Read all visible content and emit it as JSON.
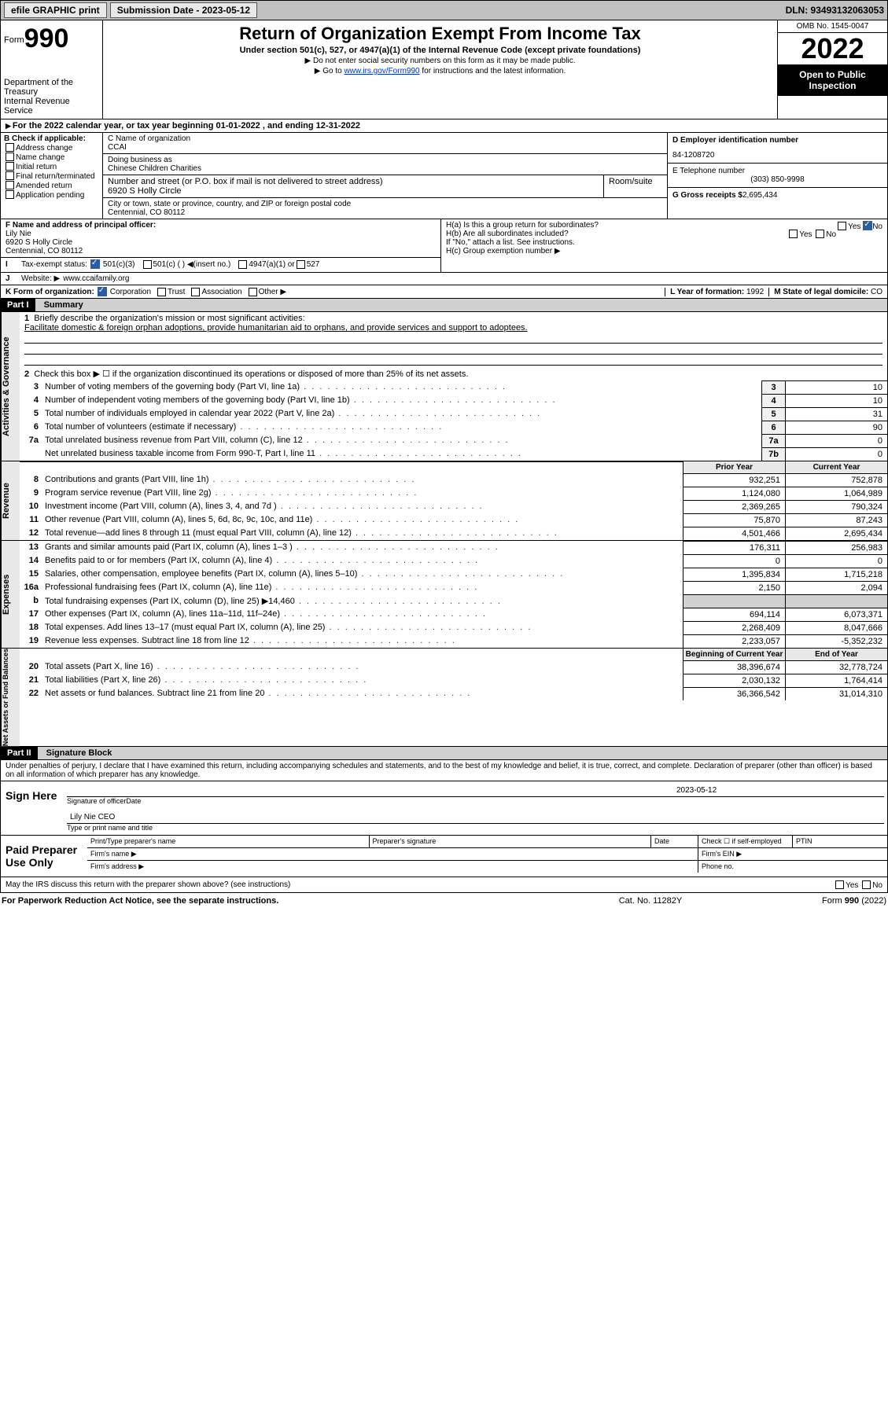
{
  "topbar": {
    "efile": "efile GRAPHIC print",
    "sub_label": "Submission Date - 2023-05-12",
    "dln": "DLN: 93493132063053"
  },
  "header": {
    "form_word": "Form",
    "form_no": "990",
    "dept": "Department of the Treasury",
    "irs": "Internal Revenue Service",
    "title": "Return of Organization Exempt From Income Tax",
    "sub1": "Under section 501(c), 527, or 4947(a)(1) of the Internal Revenue Code (except private foundations)",
    "sub2": "▶ Do not enter social security numbers on this form as it may be made public.",
    "sub3_pre": "▶ Go to ",
    "sub3_link": "www.irs.gov/Form990",
    "sub3_post": " for instructions and the latest information.",
    "omb": "OMB No. 1545-0047",
    "year": "2022",
    "inspect": "Open to Public Inspection"
  },
  "period": {
    "text": "For the 2022 calendar year, or tax year beginning 01-01-2022    , and ending 12-31-2022"
  },
  "boxB": {
    "hdr": "B Check if applicable:",
    "opts": [
      "Address change",
      "Name change",
      "Initial return",
      "Final return/terminated",
      "Amended return",
      "Application pending"
    ]
  },
  "boxC": {
    "name_lbl": "C Name of organization",
    "name": "CCAI",
    "dba_lbl": "Doing business as",
    "dba": "Chinese Children Charities",
    "addr_lbl": "Number and street (or P.O. box if mail is not delivered to street address)",
    "room_lbl": "Room/suite",
    "addr": "6920 S Holly Circle",
    "city_lbl": "City or town, state or province, country, and ZIP or foreign postal code",
    "city": "Centennial, CO  80112"
  },
  "boxD": {
    "ein_lbl": "D Employer identification number",
    "ein": "84-1208720",
    "tel_lbl": "E Telephone number",
    "tel": "(303) 850-9998",
    "gross_lbl": "G Gross receipts $",
    "gross": "2,695,434"
  },
  "boxF": {
    "lbl": "F  Name and address of principal officer:",
    "name": "Lily Nie",
    "addr1": "6920 S Holly Circle",
    "addr2": "Centennial, CO  80112"
  },
  "boxH": {
    "a": "H(a)  Is this a group return for subordinates?",
    "b": "H(b)  Are all subordinates included?",
    "b_note": "If \"No,\" attach a list. See instructions.",
    "c": "H(c)  Group exemption number ▶",
    "yes": "Yes",
    "no": "No"
  },
  "boxI": {
    "lbl": "Tax-exempt status:",
    "o1": "501(c)(3)",
    "o2": "501(c) (   ) ◀(insert no.)",
    "o3": "4947(a)(1) or",
    "o4": "527"
  },
  "boxJ": {
    "lbl": "Website: ▶",
    "val": "www.ccaifamily.org"
  },
  "boxK": {
    "lbl": "K Form of organization:",
    "o1": "Corporation",
    "o2": "Trust",
    "o3": "Association",
    "o4": "Other ▶"
  },
  "boxL": {
    "lbl": "L Year of formation: ",
    "val": "1992"
  },
  "boxM": {
    "lbl": "M State of legal domicile: ",
    "val": "CO"
  },
  "part1": {
    "hdr": "Part I",
    "title": "Summary",
    "l1": "Briefly describe the organization's mission or most significant activities:",
    "mission": "Facilitate domestic & foreign orphan adoptions, provide humanitarian aid to orphans, and provide services and support to adoptees.",
    "l2": "Check this box ▶ ☐  if the organization discontinued its operations or disposed of more than 25% of its net assets.",
    "lines_gov": [
      {
        "n": "3",
        "d": "Number of voting members of the governing body (Part VI, line 1a)",
        "b": "3",
        "v": "10"
      },
      {
        "n": "4",
        "d": "Number of independent voting members of the governing body (Part VI, line 1b)",
        "b": "4",
        "v": "10"
      },
      {
        "n": "5",
        "d": "Total number of individuals employed in calendar year 2022 (Part V, line 2a)",
        "b": "5",
        "v": "31"
      },
      {
        "n": "6",
        "d": "Total number of volunteers (estimate if necessary)",
        "b": "6",
        "v": "90"
      },
      {
        "n": "7a",
        "d": "Total unrelated business revenue from Part VIII, column (C), line 12",
        "b": "7a",
        "v": "0"
      },
      {
        "n": "",
        "d": "Net unrelated business taxable income from Form 990-T, Part I, line 11",
        "b": "7b",
        "v": "0"
      }
    ],
    "hdr_prior": "Prior Year",
    "hdr_curr": "Current Year",
    "lines_rev": [
      {
        "n": "8",
        "d": "Contributions and grants (Part VIII, line 1h)",
        "p": "932,251",
        "c": "752,878"
      },
      {
        "n": "9",
        "d": "Program service revenue (Part VIII, line 2g)",
        "p": "1,124,080",
        "c": "1,064,989"
      },
      {
        "n": "10",
        "d": "Investment income (Part VIII, column (A), lines 3, 4, and 7d )",
        "p": "2,369,265",
        "c": "790,324"
      },
      {
        "n": "11",
        "d": "Other revenue (Part VIII, column (A), lines 5, 6d, 8c, 9c, 10c, and 11e)",
        "p": "75,870",
        "c": "87,243"
      },
      {
        "n": "12",
        "d": "Total revenue—add lines 8 through 11 (must equal Part VIII, column (A), line 12)",
        "p": "4,501,466",
        "c": "2,695,434"
      }
    ],
    "lines_exp": [
      {
        "n": "13",
        "d": "Grants and similar amounts paid (Part IX, column (A), lines 1–3 )",
        "p": "176,311",
        "c": "256,983"
      },
      {
        "n": "14",
        "d": "Benefits paid to or for members (Part IX, column (A), line 4)",
        "p": "0",
        "c": "0"
      },
      {
        "n": "15",
        "d": "Salaries, other compensation, employee benefits (Part IX, column (A), lines 5–10)",
        "p": "1,395,834",
        "c": "1,715,218"
      },
      {
        "n": "16a",
        "d": "Professional fundraising fees (Part IX, column (A), line 11e)",
        "p": "2,150",
        "c": "2,094"
      },
      {
        "n": "b",
        "d": "Total fundraising expenses (Part IX, column (D), line 25) ▶14,460",
        "p": "",
        "c": ""
      },
      {
        "n": "17",
        "d": "Other expenses (Part IX, column (A), lines 11a–11d, 11f–24e)",
        "p": "694,114",
        "c": "6,073,371"
      },
      {
        "n": "18",
        "d": "Total expenses. Add lines 13–17 (must equal Part IX, column (A), line 25)",
        "p": "2,268,409",
        "c": "8,047,666"
      },
      {
        "n": "19",
        "d": "Revenue less expenses. Subtract line 18 from line 12",
        "p": "2,233,057",
        "c": "-5,352,232"
      }
    ],
    "hdr_beg": "Beginning of Current Year",
    "hdr_end": "End of Year",
    "lines_na": [
      {
        "n": "20",
        "d": "Total assets (Part X, line 16)",
        "p": "38,396,674",
        "c": "32,778,724"
      },
      {
        "n": "21",
        "d": "Total liabilities (Part X, line 26)",
        "p": "2,030,132",
        "c": "1,764,414"
      },
      {
        "n": "22",
        "d": "Net assets or fund balances. Subtract line 21 from line 20",
        "p": "36,366,542",
        "c": "31,014,310"
      }
    ]
  },
  "part2": {
    "hdr": "Part II",
    "title": "Signature Block",
    "decl": "Under penalties of perjury, I declare that I have examined this return, including accompanying schedules and statements, and to the best of my knowledge and belief, it is true, correct, and complete. Declaration of preparer (other than officer) is based on all information of which preparer has any knowledge.",
    "sign_here": "Sign Here",
    "sig_officer": "Signature of officer",
    "sig_date_lbl": "Date",
    "sig_date": "2023-05-12",
    "sig_name": "Lily Nie CEO",
    "sig_name_lbl": "Type or print name and title",
    "paid": "Paid Preparer Use Only",
    "p_name": "Print/Type preparer's name",
    "p_sig": "Preparer's signature",
    "p_date": "Date",
    "p_self": "Check ☐ if self-employed",
    "p_ptin": "PTIN",
    "firm_name": "Firm's name   ▶",
    "firm_ein": "Firm's EIN ▶",
    "firm_addr": "Firm's address ▶",
    "phone": "Phone no.",
    "discuss": "May the IRS discuss this return with the preparer shown above? (see instructions)"
  },
  "footer": {
    "l": "For Paperwork Reduction Act Notice, see the separate instructions.",
    "m": "Cat. No. 11282Y",
    "r": "Form 990 (2022)"
  },
  "tabs": {
    "gov": "Activities & Governance",
    "rev": "Revenue",
    "exp": "Expenses",
    "na": "Net Assets or Fund Balances"
  }
}
